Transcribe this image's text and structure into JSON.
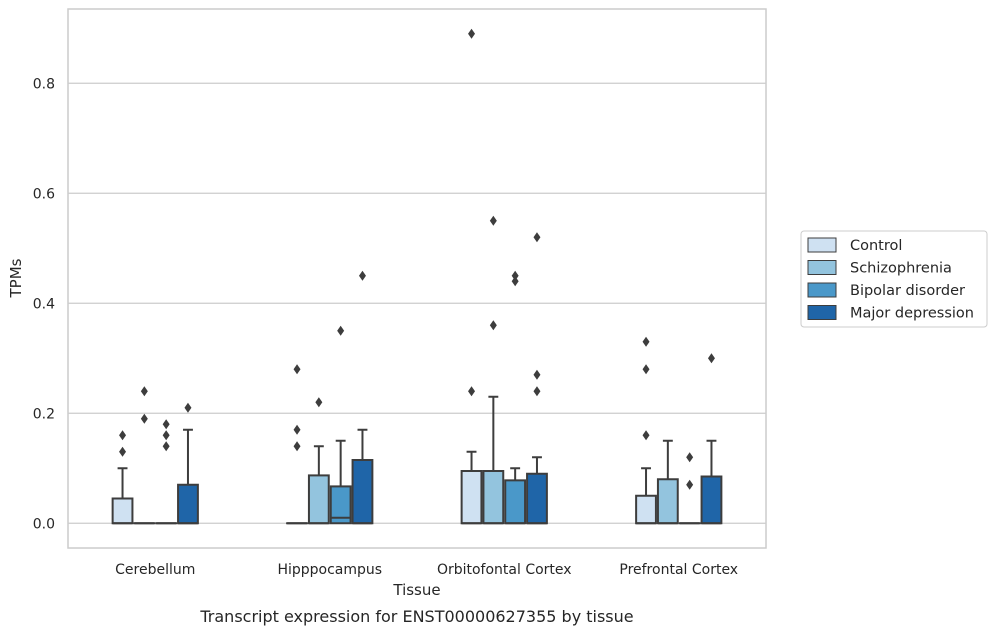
{
  "chart_data": {
    "type": "box",
    "title": "Transcript expression for ENST00000627355 by tissue",
    "xlabel": "Tissue",
    "ylabel": "TPMs",
    "ylim": [
      -0.045,
      0.935
    ],
    "yticks": [
      0.0,
      0.2,
      0.4,
      0.6,
      0.8
    ],
    "ytick_labels": [
      "0.0",
      "0.2",
      "0.4",
      "0.6",
      "0.8"
    ],
    "grid": "horizontal",
    "legend_position": "right",
    "categories": [
      "Cerebellum",
      "Hipppocampus",
      "Orbitofontal Cortex",
      "Prefrontal Cortex"
    ],
    "series": [
      {
        "name": "Control",
        "color": "#cfe1f2",
        "boxes": [
          {
            "q1": 0.0,
            "median": 0.0,
            "q3": 0.045,
            "whisker_low": 0.0,
            "whisker_high": 0.1,
            "outliers": [
              0.13,
              0.16
            ]
          },
          {
            "q1": 0.0,
            "median": 0.0,
            "q3": 0.0,
            "whisker_low": 0.0,
            "whisker_high": 0.0,
            "outliers": [
              0.14,
              0.17,
              0.28
            ]
          },
          {
            "q1": 0.0,
            "median": 0.0,
            "q3": 0.095,
            "whisker_low": 0.0,
            "whisker_high": 0.13,
            "outliers": [
              0.24,
              0.89
            ]
          },
          {
            "q1": 0.0,
            "median": 0.0,
            "q3": 0.05,
            "whisker_low": 0.0,
            "whisker_high": 0.1,
            "outliers": [
              0.16,
              0.28,
              0.33
            ]
          }
        ]
      },
      {
        "name": "Schizophrenia",
        "color": "#93c4de",
        "boxes": [
          {
            "q1": 0.0,
            "median": 0.0,
            "q3": 0.0,
            "whisker_low": 0.0,
            "whisker_high": 0.0,
            "outliers": [
              0.19,
              0.24
            ]
          },
          {
            "q1": 0.0,
            "median": 0.0,
            "q3": 0.087,
            "whisker_low": 0.0,
            "whisker_high": 0.14,
            "outliers": [
              0.22
            ]
          },
          {
            "q1": 0.0,
            "median": 0.0,
            "q3": 0.095,
            "whisker_low": 0.0,
            "whisker_high": 0.23,
            "outliers": [
              0.36,
              0.55
            ]
          },
          {
            "q1": 0.0,
            "median": 0.0,
            "q3": 0.08,
            "whisker_low": 0.0,
            "whisker_high": 0.15,
            "outliers": []
          }
        ]
      },
      {
        "name": "Bipolar disorder",
        "color": "#4a98c9",
        "boxes": [
          {
            "q1": 0.0,
            "median": 0.0,
            "q3": 0.0,
            "whisker_low": 0.0,
            "whisker_high": 0.0,
            "outliers": [
              0.14,
              0.16,
              0.18
            ]
          },
          {
            "q1": 0.0,
            "median": 0.01,
            "q3": 0.067,
            "whisker_low": 0.0,
            "whisker_high": 0.15,
            "outliers": [
              0.35
            ]
          },
          {
            "q1": 0.0,
            "median": 0.0,
            "q3": 0.078,
            "whisker_low": 0.0,
            "whisker_high": 0.1,
            "outliers": [
              0.44,
              0.45
            ]
          },
          {
            "q1": 0.0,
            "median": 0.0,
            "q3": 0.0,
            "whisker_low": 0.0,
            "whisker_high": 0.0,
            "outliers": [
              0.07,
              0.12
            ]
          }
        ]
      },
      {
        "name": "Major depression",
        "color": "#1f65a8",
        "boxes": [
          {
            "q1": 0.0,
            "median": 0.0,
            "q3": 0.07,
            "whisker_low": 0.0,
            "whisker_high": 0.17,
            "outliers": [
              0.21
            ]
          },
          {
            "q1": 0.0,
            "median": 0.0,
            "q3": 0.115,
            "whisker_low": 0.0,
            "whisker_high": 0.17,
            "outliers": [
              0.45
            ]
          },
          {
            "q1": 0.0,
            "median": 0.0,
            "q3": 0.09,
            "whisker_low": 0.0,
            "whisker_high": 0.12,
            "outliers": [
              0.24,
              0.27,
              0.52
            ]
          },
          {
            "q1": 0.0,
            "median": 0.0,
            "q3": 0.085,
            "whisker_low": 0.0,
            "whisker_high": 0.15,
            "outliers": [
              0.3
            ]
          }
        ]
      }
    ]
  }
}
